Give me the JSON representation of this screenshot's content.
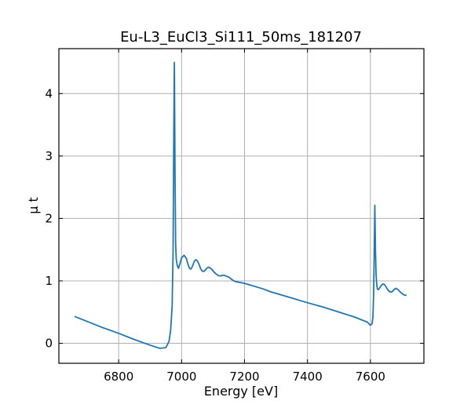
{
  "chart_data": {
    "type": "line",
    "title": "Eu-L3_EuCl3_Si111_50ms_181207",
    "xlabel": "Energy [eV]",
    "ylabel": "μ t",
    "xlim": [
      6610,
      7770
    ],
    "ylim": [
      -0.32,
      4.72
    ],
    "xticks": [
      6800,
      7000,
      7200,
      7400,
      7600
    ],
    "yticks": [
      0,
      1,
      2,
      3,
      4
    ],
    "grid": true,
    "colors": {
      "line": "#1f77b4"
    },
    "series": [
      {
        "x": [
          6660,
          6700,
          6750,
          6800,
          6850,
          6900,
          6930,
          6950,
          6960,
          6965,
          6970,
          6973,
          6975,
          6977,
          6979,
          6981,
          6983,
          6986,
          6990,
          6995,
          7000,
          7008,
          7015,
          7020,
          7025,
          7030,
          7035,
          7040,
          7045,
          7050,
          7055,
          7060,
          7065,
          7070,
          7075,
          7080,
          7085,
          7090,
          7095,
          7100,
          7105,
          7110,
          7115,
          7120,
          7125,
          7130,
          7135,
          7140,
          7150,
          7160,
          7170,
          7180,
          7190,
          7200,
          7220,
          7240,
          7260,
          7280,
          7300,
          7320,
          7340,
          7360,
          7380,
          7400,
          7450,
          7500,
          7550,
          7590,
          7600,
          7605,
          7608,
          7610,
          7612,
          7614,
          7616,
          7618,
          7620,
          7622,
          7625,
          7630,
          7635,
          7640,
          7645,
          7650,
          7655,
          7660,
          7665,
          7670,
          7675,
          7680,
          7685,
          7690,
          7695,
          7700,
          7705,
          7710,
          7715
        ],
        "y": [
          0.43,
          0.35,
          0.25,
          0.16,
          0.06,
          -0.03,
          -0.08,
          -0.07,
          0.03,
          0.2,
          0.6,
          1.5,
          3.2,
          4.5,
          2.8,
          1.6,
          1.35,
          1.25,
          1.2,
          1.28,
          1.37,
          1.41,
          1.36,
          1.27,
          1.2,
          1.19,
          1.24,
          1.31,
          1.34,
          1.32,
          1.27,
          1.2,
          1.16,
          1.15,
          1.17,
          1.2,
          1.22,
          1.21,
          1.19,
          1.16,
          1.13,
          1.11,
          1.09,
          1.08,
          1.08,
          1.09,
          1.09,
          1.08,
          1.06,
          1.02,
          0.99,
          0.98,
          0.97,
          0.96,
          0.93,
          0.9,
          0.87,
          0.83,
          0.8,
          0.77,
          0.74,
          0.71,
          0.68,
          0.65,
          0.58,
          0.5,
          0.42,
          0.34,
          0.29,
          0.31,
          0.42,
          0.75,
          1.4,
          2.21,
          1.5,
          1.1,
          0.95,
          0.87,
          0.86,
          0.89,
          0.93,
          0.95,
          0.94,
          0.9,
          0.86,
          0.83,
          0.82,
          0.83,
          0.86,
          0.88,
          0.87,
          0.85,
          0.82,
          0.8,
          0.78,
          0.77,
          0.77
        ]
      }
    ]
  }
}
